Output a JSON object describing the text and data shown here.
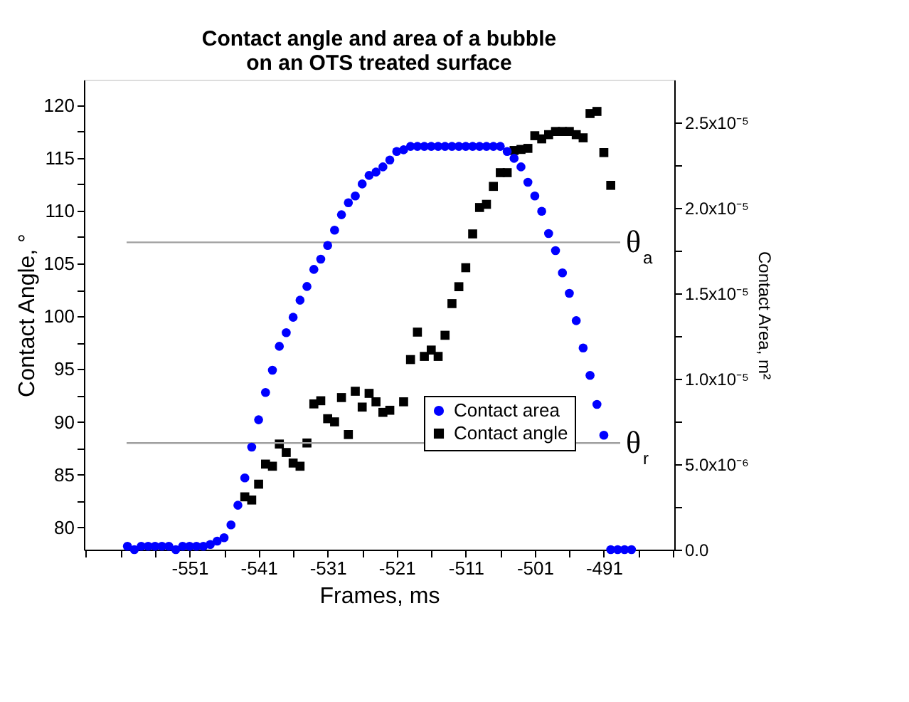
{
  "chart_data": {
    "type": "scatter",
    "title": "Contact angle and area of a bubble\non an OTS treated surface",
    "xlabel": "Frames, ms",
    "ylabel": "Contact Angle, °",
    "y2label": "Contact Area, m²",
    "xlim": [
      -566.3,
      -480.8
    ],
    "xticks": [
      {
        "value": -566,
        "label": null
      },
      {
        "value": -561,
        "label": null
      },
      {
        "value": -556,
        "label": null
      },
      -551,
      {
        "value": -546,
        "label": null
      },
      -541,
      {
        "value": -536,
        "label": null
      },
      -531,
      {
        "value": -526,
        "label": null
      },
      -521,
      {
        "value": -516,
        "label": null
      },
      -511,
      {
        "value": -506,
        "label": null
      },
      -501,
      {
        "value": -496,
        "label": null
      },
      -491,
      {
        "value": -486,
        "label": null
      },
      {
        "value": -481,
        "label": null
      }
    ],
    "ylim": [
      77.9,
      122.4
    ],
    "yticks": [
      80,
      {
        "value": 82.5,
        "label": null
      },
      85,
      {
        "value": 87.5,
        "label": null
      },
      90,
      {
        "value": 92.5,
        "label": null
      },
      95,
      {
        "value": 97.5,
        "label": null
      },
      100,
      {
        "value": 102.5,
        "label": null
      },
      105,
      {
        "value": 107.5,
        "label": null
      },
      110,
      {
        "value": 112.5,
        "label": null
      },
      115,
      {
        "value": 117.5,
        "label": null
      },
      120
    ],
    "y2lim": [
      0,
      2.75e-05
    ],
    "y2ticks": [
      {
        "value": 0,
        "label": "0.0"
      },
      {
        "value": 2.5e-06,
        "label": null
      },
      {
        "value": 5e-06,
        "label": "5.0x10⁻⁶"
      },
      {
        "value": 7.5e-06,
        "label": null
      },
      {
        "value": 1e-05,
        "label": "1.0x10⁻⁵"
      },
      {
        "value": 1.25e-05,
        "label": null
      },
      {
        "value": 1.5e-05,
        "label": "1.5x10⁻⁵"
      },
      {
        "value": 1.75e-05,
        "label": null
      },
      {
        "value": 2e-05,
        "label": "2.0x10⁻⁵"
      },
      {
        "value": 2.25e-05,
        "label": null
      },
      {
        "value": 2.5e-05,
        "label": "2.5x10⁻⁵"
      }
    ],
    "grid": false,
    "legend": "bottom right",
    "ref_lines": [
      {
        "axis": "y",
        "value": 107.0,
        "label": "θ$_{a}$",
        "color": "#a0a0a0"
      },
      {
        "axis": "y",
        "value": 88.0,
        "label": "θ$_{r}$",
        "color": "#a0a0a0"
      }
    ],
    "series": [
      {
        "name": "Contact area",
        "color": "#0000ff",
        "marker": "circle",
        "axis": "y2",
        "x": [
          -560,
          -559,
          -558,
          -557,
          -556,
          -555,
          -554,
          -553,
          -552,
          -551,
          -550,
          -549,
          -548,
          -547,
          -546,
          -545,
          -544,
          -543,
          -542,
          -541,
          -540,
          -539,
          -538,
          -537,
          -536,
          -535,
          -534,
          -533,
          -532,
          -531,
          -530,
          -529,
          -528,
          -527,
          -526,
          -525,
          -524,
          -523,
          -522,
          -521,
          -520,
          -519,
          -518,
          -517,
          -516,
          -515,
          -514,
          -513,
          -512,
          -511,
          -510,
          -509,
          -508,
          -507,
          -506,
          -505,
          -504,
          -503,
          -502,
          -501,
          -500,
          -499,
          -498,
          -497,
          -496,
          -495,
          -494,
          -493,
          -492,
          -491,
          -490,
          -489,
          -488,
          -487
        ],
        "values": [
          2e-07,
          0,
          2e-07,
          2e-07,
          2e-07,
          2e-07,
          2e-07,
          0,
          2e-07,
          2e-07,
          2e-07,
          2e-07,
          3e-07,
          5e-07,
          7e-07,
          1.45e-06,
          2.6e-06,
          4.2e-06,
          6e-06,
          7.6e-06,
          9.2e-06,
          1.05e-05,
          1.19e-05,
          1.27e-05,
          1.36e-05,
          1.46e-05,
          1.54e-05,
          1.64e-05,
          1.7e-05,
          1.78e-05,
          1.87e-05,
          1.96e-05,
          2.03e-05,
          2.07e-05,
          2.14e-05,
          2.19e-05,
          2.21e-05,
          2.24e-05,
          2.28e-05,
          2.33e-05,
          2.34e-05,
          2.36e-05,
          2.36e-05,
          2.36e-05,
          2.36e-05,
          2.36e-05,
          2.36e-05,
          2.36e-05,
          2.36e-05,
          2.36e-05,
          2.36e-05,
          2.36e-05,
          2.36e-05,
          2.36e-05,
          2.36e-05,
          2.33e-05,
          2.29e-05,
          2.24e-05,
          2.15e-05,
          2.07e-05,
          1.98e-05,
          1.85e-05,
          1.75e-05,
          1.62e-05,
          1.5e-05,
          1.34e-05,
          1.18e-05,
          1.02e-05,
          8.5e-06,
          6.7e-06,
          0,
          0,
          0,
          0
        ]
      },
      {
        "name": "Contact angle",
        "color": "#000000",
        "marker": "square",
        "axis": "y",
        "x": [
          -543,
          -542,
          -541,
          -540,
          -539,
          -538,
          -537,
          -536,
          -535,
          -534,
          -533,
          -532,
          -531,
          -530,
          -529,
          -528,
          -527,
          -526,
          -525,
          -524,
          -523,
          -522,
          -520,
          -519,
          -518,
          -517,
          -516,
          -515,
          -514,
          -513,
          -512,
          -511,
          -510,
          -509,
          -508,
          -507,
          -506,
          -505,
          -504,
          -503,
          -502,
          -501,
          -500,
          -499,
          -498,
          -497,
          -496,
          -495,
          -494,
          -493,
          -492,
          -491,
          -490
        ],
        "values": [
          82.9,
          82.6,
          84.1,
          86.0,
          85.8,
          87.9,
          87.1,
          86.1,
          85.8,
          88.0,
          91.7,
          92.0,
          90.3,
          90.0,
          92.3,
          88.8,
          92.9,
          91.4,
          92.7,
          91.9,
          90.9,
          91.1,
          91.9,
          95.9,
          98.5,
          96.2,
          96.8,
          96.2,
          98.2,
          101.2,
          102.8,
          104.6,
          107.8,
          110.3,
          110.6,
          112.3,
          113.6,
          113.6,
          115.7,
          115.8,
          115.9,
          117.1,
          116.8,
          117.2,
          117.5,
          117.5,
          117.5,
          117.2,
          116.9,
          119.2,
          119.4,
          115.5,
          112.4
        ]
      }
    ]
  }
}
